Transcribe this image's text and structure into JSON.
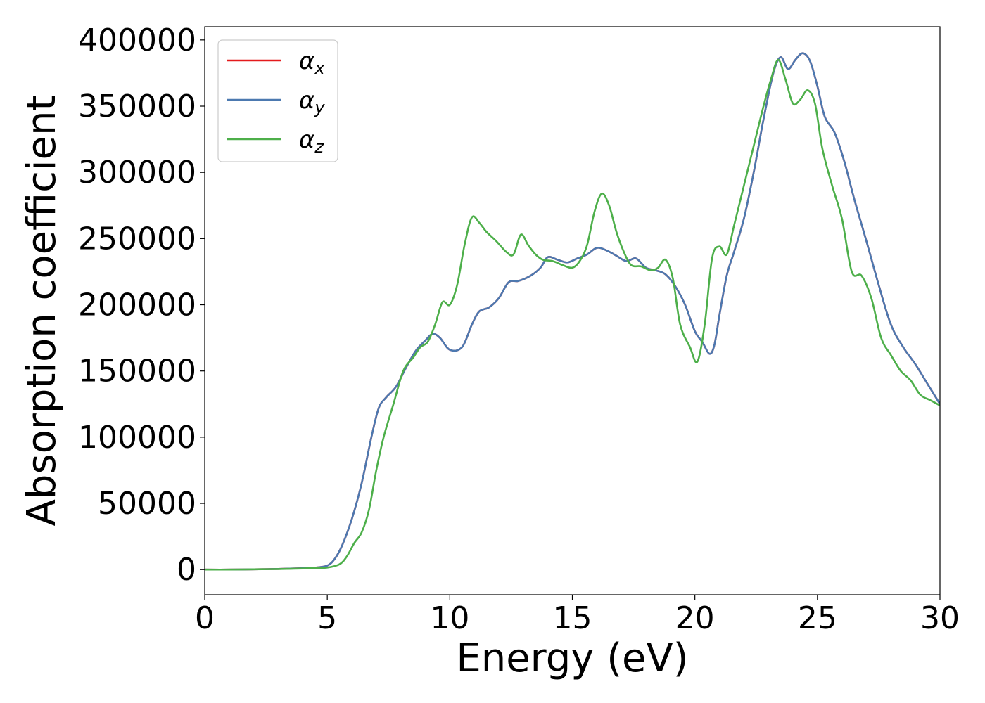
{
  "chart_data": {
    "type": "line",
    "title": "",
    "xlabel": "Energy (eV)",
    "ylabel": "Absorption coefficient",
    "xlim": [
      0,
      30
    ],
    "ylim": [
      -19000,
      410000
    ],
    "xticks": [
      0,
      5,
      10,
      15,
      20,
      25,
      30
    ],
    "yticks": [
      0,
      50000,
      100000,
      150000,
      200000,
      250000,
      300000,
      350000,
      400000
    ],
    "grid": false,
    "legend": "top-left",
    "series": [
      {
        "name": "α",
        "subscript": "x",
        "color": "#e41a1c",
        "x": [
          0,
          1,
          2,
          3,
          4,
          4.5,
          5,
          5.3,
          5.6,
          6,
          6.4,
          6.8,
          7.1,
          7.4,
          7.8,
          8.2,
          8.6,
          9,
          9.3,
          9.6,
          10,
          10.5,
          10.9,
          11.2,
          11.6,
          12,
          12.4,
          12.8,
          13.3,
          13.7,
          14,
          14.4,
          14.8,
          15.2,
          15.6,
          16,
          16.4,
          16.8,
          17.2,
          17.6,
          18,
          18.4,
          18.8,
          19.2,
          19.6,
          20,
          20.3,
          20.6,
          20.8,
          21,
          21.3,
          21.6,
          22,
          22.4,
          22.8,
          23.2,
          23.5,
          23.8,
          24.1,
          24.4,
          24.7,
          25,
          25.3,
          25.7,
          26.1,
          26.5,
          27,
          27.5,
          28,
          28.5,
          29,
          29.5,
          30
        ],
        "values": [
          0,
          0,
          200,
          500,
          1000,
          1500,
          3000,
          8000,
          18000,
          38000,
          65000,
          100000,
          122000,
          130000,
          138000,
          152000,
          165000,
          173000,
          178000,
          175000,
          166000,
          168000,
          185000,
          195000,
          198000,
          205000,
          217000,
          218000,
          222000,
          228000,
          236000,
          234000,
          232000,
          235000,
          238000,
          243000,
          241000,
          237000,
          233000,
          235000,
          228000,
          226000,
          223000,
          214000,
          200000,
          180000,
          172000,
          163000,
          170000,
          192000,
          222000,
          240000,
          265000,
          300000,
          340000,
          375000,
          387000,
          378000,
          385000,
          390000,
          384000,
          365000,
          342000,
          330000,
          308000,
          280000,
          248000,
          215000,
          185000,
          168000,
          155000,
          140000,
          125000
        ]
      },
      {
        "name": "α",
        "subscript": "y",
        "color": "#4c79b0",
        "x": [
          0,
          1,
          2,
          3,
          4,
          4.5,
          5,
          5.3,
          5.6,
          6,
          6.4,
          6.8,
          7.1,
          7.4,
          7.8,
          8.2,
          8.6,
          9,
          9.3,
          9.6,
          10,
          10.5,
          10.9,
          11.2,
          11.6,
          12,
          12.4,
          12.8,
          13.3,
          13.7,
          14,
          14.4,
          14.8,
          15.2,
          15.6,
          16,
          16.4,
          16.8,
          17.2,
          17.6,
          18,
          18.4,
          18.8,
          19.2,
          19.6,
          20,
          20.3,
          20.6,
          20.8,
          21,
          21.3,
          21.6,
          22,
          22.4,
          22.8,
          23.2,
          23.5,
          23.8,
          24.1,
          24.4,
          24.7,
          25,
          25.3,
          25.7,
          26.1,
          26.5,
          27,
          27.5,
          28,
          28.5,
          29,
          29.5,
          30
        ],
        "values": [
          0,
          0,
          200,
          500,
          1000,
          1500,
          3000,
          8000,
          18000,
          38000,
          65000,
          100000,
          122000,
          130000,
          138000,
          152000,
          165000,
          173000,
          178000,
          175000,
          166000,
          168000,
          185000,
          195000,
          198000,
          205000,
          217000,
          218000,
          222000,
          228000,
          236000,
          234000,
          232000,
          235000,
          238000,
          243000,
          241000,
          237000,
          233000,
          235000,
          228000,
          226000,
          223000,
          214000,
          200000,
          180000,
          172000,
          163000,
          170000,
          192000,
          222000,
          240000,
          265000,
          300000,
          340000,
          375000,
          387000,
          378000,
          385000,
          390000,
          384000,
          365000,
          342000,
          330000,
          308000,
          280000,
          248000,
          215000,
          185000,
          168000,
          155000,
          140000,
          125000
        ]
      },
      {
        "name": "α",
        "subscript": "z",
        "color": "#4daf4a",
        "x": [
          0,
          1,
          2,
          3,
          4,
          4.5,
          5,
          5.5,
          5.8,
          6.1,
          6.4,
          6.7,
          7,
          7.3,
          7.7,
          8.1,
          8.5,
          8.8,
          9.1,
          9.4,
          9.7,
          10,
          10.3,
          10.6,
          10.9,
          11.2,
          11.5,
          11.9,
          12.3,
          12.6,
          12.9,
          13.2,
          13.5,
          13.8,
          14.2,
          14.6,
          15,
          15.3,
          15.6,
          15.9,
          16.2,
          16.5,
          16.8,
          17.1,
          17.4,
          17.8,
          18.2,
          18.5,
          18.8,
          19.1,
          19.4,
          19.8,
          20.1,
          20.4,
          20.7,
          21,
          21.3,
          21.6,
          22,
          22.4,
          22.8,
          23.1,
          23.4,
          23.7,
          24,
          24.3,
          24.6,
          24.9,
          25.2,
          25.6,
          26,
          26.4,
          26.8,
          27.2,
          27.6,
          28,
          28.4,
          28.8,
          29.2,
          29.6,
          30
        ],
        "values": [
          0,
          0,
          200,
          400,
          800,
          1200,
          1500,
          4000,
          10000,
          20000,
          28000,
          45000,
          75000,
          100000,
          125000,
          150000,
          160000,
          168000,
          172000,
          185000,
          202000,
          200000,
          215000,
          245000,
          266000,
          262000,
          255000,
          248000,
          240000,
          238000,
          253000,
          245000,
          238000,
          234000,
          233000,
          230000,
          228000,
          233000,
          245000,
          270000,
          284000,
          275000,
          255000,
          240000,
          230000,
          229000,
          226000,
          228000,
          234000,
          220000,
          185000,
          168000,
          157000,
          185000,
          235000,
          244000,
          238000,
          260000,
          290000,
          320000,
          350000,
          370000,
          385000,
          370000,
          352000,
          355000,
          362000,
          352000,
          318000,
          290000,
          265000,
          225000,
          222000,
          205000,
          175000,
          162000,
          150000,
          143000,
          132000,
          128000,
          124000
        ]
      }
    ]
  }
}
